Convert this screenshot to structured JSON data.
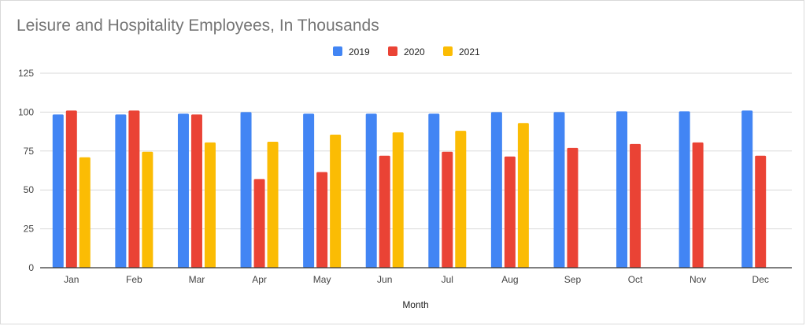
{
  "chart_data": {
    "type": "bar",
    "title": "Leisure and Hospitality Employees, In Thousands",
    "xlabel": "Month",
    "ylabel": "",
    "ylim": [
      0,
      125
    ],
    "yticks": [
      0,
      25,
      50,
      75,
      100,
      125
    ],
    "grid": true,
    "legend_position": "top",
    "categories": [
      "Jan",
      "Feb",
      "Mar",
      "Apr",
      "May",
      "Jun",
      "Jul",
      "Aug",
      "Sep",
      "Oct",
      "Nov",
      "Dec"
    ],
    "series": [
      {
        "name": "2019",
        "color": "#4285f4",
        "values": [
          98.5,
          98.5,
          99,
          100,
          99,
          99,
          99,
          100,
          100,
          100.5,
          100.5,
          101
        ]
      },
      {
        "name": "2020",
        "color": "#ea4335",
        "values": [
          101,
          101,
          98.5,
          57,
          61.5,
          72,
          74.5,
          71.5,
          77,
          79.5,
          80.5,
          72
        ]
      },
      {
        "name": "2021",
        "color": "#fbbc04",
        "values": [
          71,
          74.5,
          80.5,
          81,
          85.5,
          87,
          88,
          93,
          null,
          null,
          null,
          null
        ]
      }
    ]
  }
}
